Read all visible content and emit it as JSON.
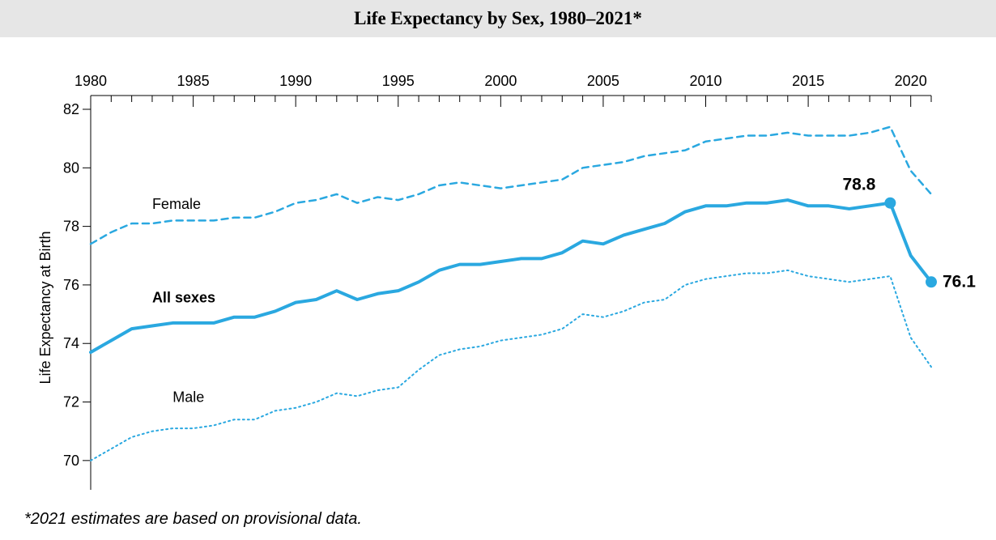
{
  "title": "Life Expectancy by Sex, 1980–2021*",
  "footnote": "*2021 estimates are based on provisional data.",
  "chart": {
    "type": "line",
    "ylabel": "Life Expectancy at Birth",
    "ylabel_fontsize": 18,
    "xlim": [
      1980,
      2021
    ],
    "ylim": [
      69,
      82
    ],
    "xticks_major": [
      1980,
      1985,
      1990,
      1995,
      2000,
      2005,
      2010,
      2015,
      2020
    ],
    "xticks_minor_step": 1,
    "yticks": [
      70,
      72,
      74,
      76,
      78,
      80,
      82
    ],
    "tick_fontsize": 18,
    "background_color": "#ffffff",
    "axis_color": "#000000",
    "axis_width": 1,
    "series": {
      "female": {
        "label": "Female",
        "label_pos_year": 1983,
        "label_pos_y": 78.6,
        "label_fontsize": 18,
        "label_fontweight": "normal",
        "color": "#2aa8e0",
        "dash": "8 6",
        "width": 2.5,
        "years": [
          1980,
          1981,
          1982,
          1983,
          1984,
          1985,
          1986,
          1987,
          1988,
          1989,
          1990,
          1991,
          1992,
          1993,
          1994,
          1995,
          1996,
          1997,
          1998,
          1999,
          2000,
          2001,
          2002,
          2003,
          2004,
          2005,
          2006,
          2007,
          2008,
          2009,
          2010,
          2011,
          2012,
          2013,
          2014,
          2015,
          2016,
          2017,
          2018,
          2019,
          2020,
          2021
        ],
        "values": [
          77.4,
          77.8,
          78.1,
          78.1,
          78.2,
          78.2,
          78.2,
          78.3,
          78.3,
          78.5,
          78.8,
          78.9,
          79.1,
          78.8,
          79.0,
          78.9,
          79.1,
          79.4,
          79.5,
          79.4,
          79.3,
          79.4,
          79.5,
          79.6,
          80.0,
          80.1,
          80.2,
          80.4,
          80.5,
          80.6,
          80.9,
          81.0,
          81.1,
          81.1,
          81.2,
          81.1,
          81.1,
          81.1,
          81.2,
          81.4,
          79.9,
          79.1
        ]
      },
      "all": {
        "label": "All sexes",
        "label_pos_year": 1983,
        "label_pos_y": 75.4,
        "label_fontsize": 18,
        "label_fontweight": "bold",
        "color": "#2aa8e0",
        "dash": "none",
        "width": 4,
        "years": [
          1980,
          1981,
          1982,
          1983,
          1984,
          1985,
          1986,
          1987,
          1988,
          1989,
          1990,
          1991,
          1992,
          1993,
          1994,
          1995,
          1996,
          1997,
          1998,
          1999,
          2000,
          2001,
          2002,
          2003,
          2004,
          2005,
          2006,
          2007,
          2008,
          2009,
          2010,
          2011,
          2012,
          2013,
          2014,
          2015,
          2016,
          2017,
          2018,
          2019,
          2020,
          2021
        ],
        "values": [
          73.7,
          74.1,
          74.5,
          74.6,
          74.7,
          74.7,
          74.7,
          74.9,
          74.9,
          75.1,
          75.4,
          75.5,
          75.8,
          75.5,
          75.7,
          75.8,
          76.1,
          76.5,
          76.7,
          76.7,
          76.8,
          76.9,
          76.9,
          77.1,
          77.5,
          77.4,
          77.7,
          77.9,
          78.1,
          78.5,
          78.7,
          78.7,
          78.8,
          78.8,
          78.9,
          78.7,
          78.7,
          78.6,
          78.7,
          78.8,
          77.0,
          76.1
        ],
        "markers": [
          {
            "year": 2019,
            "value": 78.8,
            "label": "78.8",
            "label_dx": -18,
            "label_dy": -16,
            "text_anchor": "end"
          },
          {
            "year": 2021,
            "value": 76.1,
            "label": "76.1",
            "label_dx": 14,
            "label_dy": 6,
            "text_anchor": "start"
          }
        ],
        "marker_radius": 7,
        "marker_label_fontsize": 21,
        "marker_label_fontweight": "bold"
      },
      "male": {
        "label": "Male",
        "label_pos_year": 1984,
        "label_pos_y": 72.0,
        "label_fontsize": 18,
        "label_fontweight": "normal",
        "color": "#2aa8e0",
        "dash": "2 4",
        "width": 2,
        "years": [
          1980,
          1981,
          1982,
          1983,
          1984,
          1985,
          1986,
          1987,
          1988,
          1989,
          1990,
          1991,
          1992,
          1993,
          1994,
          1995,
          1996,
          1997,
          1998,
          1999,
          2000,
          2001,
          2002,
          2003,
          2004,
          2005,
          2006,
          2007,
          2008,
          2009,
          2010,
          2011,
          2012,
          2013,
          2014,
          2015,
          2016,
          2017,
          2018,
          2019,
          2020,
          2021
        ],
        "values": [
          70.0,
          70.4,
          70.8,
          71.0,
          71.1,
          71.1,
          71.2,
          71.4,
          71.4,
          71.7,
          71.8,
          72.0,
          72.3,
          72.2,
          72.4,
          72.5,
          73.1,
          73.6,
          73.8,
          73.9,
          74.1,
          74.2,
          74.3,
          74.5,
          75.0,
          74.9,
          75.1,
          75.4,
          75.5,
          76.0,
          76.2,
          76.3,
          76.4,
          76.4,
          76.5,
          76.3,
          76.2,
          76.1,
          76.2,
          76.3,
          74.2,
          73.2
        ]
      }
    }
  }
}
